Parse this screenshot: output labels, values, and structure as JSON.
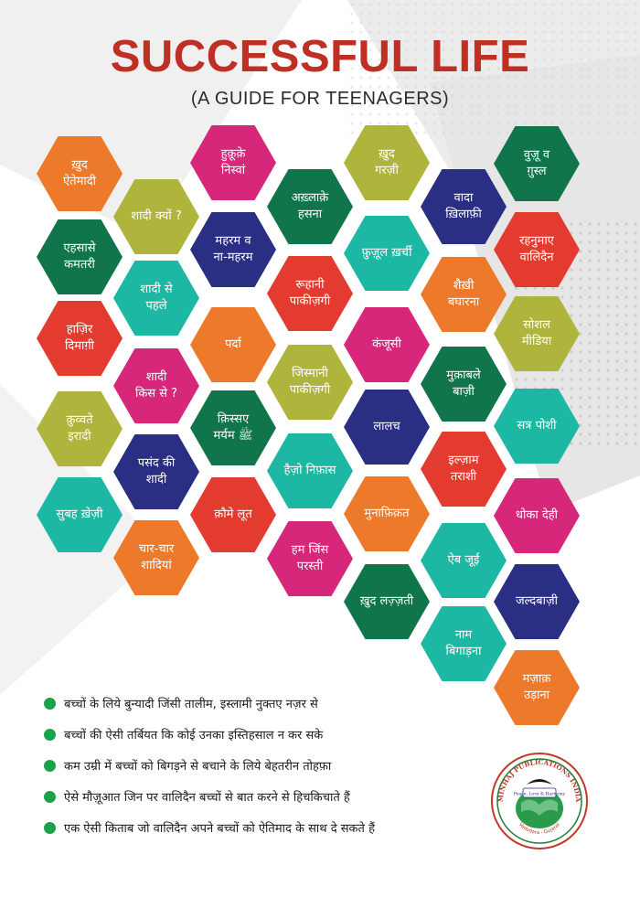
{
  "header": {
    "title": "SUCCESSFUL LIFE",
    "subtitle": "(A GUIDE FOR TEENAGERS)"
  },
  "colors": {
    "title": "#bf2f24",
    "orange": "#ec7a2a",
    "magenta": "#d6277a",
    "green": "#10754a",
    "olive": "#afb43c",
    "navy": "#2a2f83",
    "teal": "#1cb8a3",
    "red": "#e33b2f",
    "bullet_dot": "#1aa24a"
  },
  "topics": [
    {
      "label": "ख़ुद\nऐतेमादी",
      "color": "orange"
    },
    {
      "label": "हुक़ूक़े\nनिस्वां",
      "color": "magenta"
    },
    {
      "label": "ख़ुद\nगरज़ी",
      "color": "olive"
    },
    {
      "label": "वुज़ू व\nग़ुस्ल",
      "color": "green"
    },
    {
      "label": "शादी क्यों ?",
      "color": "olive"
    },
    {
      "label": "अख़्लाक़े\nहसना",
      "color": "green"
    },
    {
      "label": "वादा\nख़िलाफ़ी",
      "color": "navy"
    },
    {
      "label": "एहसासे\nकमतरी",
      "color": "green"
    },
    {
      "label": "महरम व\nना-महरम",
      "color": "navy"
    },
    {
      "label": "फ़ुज़ूल ख़र्ची",
      "color": "teal"
    },
    {
      "label": "रहनुमाए\nवालिदैन",
      "color": "red"
    },
    {
      "label": "शादी से\nपहले",
      "color": "teal"
    },
    {
      "label": "रूहानी\nपाकीज़गी",
      "color": "red"
    },
    {
      "label": "शैख़ी\nबघारना",
      "color": "orange"
    },
    {
      "label": "हाज़िर\nदिमाग़ी",
      "color": "red"
    },
    {
      "label": "पर्दा",
      "color": "orange"
    },
    {
      "label": "कंजूसी",
      "color": "magenta"
    },
    {
      "label": "सोशल\nमीडिया",
      "color": "olive"
    },
    {
      "label": "शादी\nकिस से ?",
      "color": "magenta"
    },
    {
      "label": "जिस्मानी\nपाकीज़गी",
      "color": "olive"
    },
    {
      "label": "मुक़ाबले\nबाज़ी",
      "color": "green"
    },
    {
      "label": "क़ुव्वते\nइरादी",
      "color": "olive"
    },
    {
      "label": "क़िस्सए\nमर्यम ﷺ",
      "color": "green"
    },
    {
      "label": "लालच",
      "color": "navy"
    },
    {
      "label": "सत्र पोशी",
      "color": "teal"
    },
    {
      "label": "पसंद की\nशादी",
      "color": "navy"
    },
    {
      "label": "हैज़ो निफ़ास",
      "color": "teal"
    },
    {
      "label": "इल्ज़ाम\nतराशी",
      "color": "red"
    },
    {
      "label": "सुबह ख़ेज़ी",
      "color": "teal"
    },
    {
      "label": "क़ौमे लूत",
      "color": "red"
    },
    {
      "label": "मुनाफ़िक़त",
      "color": "orange"
    },
    {
      "label": "धोका देही",
      "color": "magenta"
    },
    {
      "label": "चार-चार\nशादियां",
      "color": "orange"
    },
    {
      "label": "हम जिंस\nपरस्ती",
      "color": "magenta"
    },
    {
      "label": "ऐब जूई",
      "color": "teal"
    },
    {
      "label": "ख़ुद लज़्ज़ती",
      "color": "green"
    },
    {
      "label": "जल्दबाज़ी",
      "color": "navy"
    },
    {
      "label": "नाम\nबिगाड़ना",
      "color": "teal"
    },
    {
      "label": "मज़ाक़\nउड़ाना",
      "color": "orange"
    }
  ],
  "bullets": [
    "बच्चों के लिये बुन्यादी जिंसी तालीम, इस्लामी नुक्तए नज़र से",
    "बच्चों की ऐसी तर्बियत कि कोई उनका इस्तिहसाल न कर सके",
    "कम उम्री में बच्चों को बिगड़ने से बचाने के लिये बेहतरीन तोहफ़ा",
    "ऐसे मौज़ूआत जिन पर वालिदैन बच्चों से बात करने से हिचकिचाते हैं",
    "एक ऐसी किताब जो वालिदैन अपने बच्चों को ऐतिमाद के साथ दे सकते हैं"
  ],
  "logo": {
    "arc_text": "MINHAJ PUBLICATIONS INDIA",
    "banner_text": "Peace, Love & Harmony",
    "place_text": "Vadodara - Gujarat"
  }
}
